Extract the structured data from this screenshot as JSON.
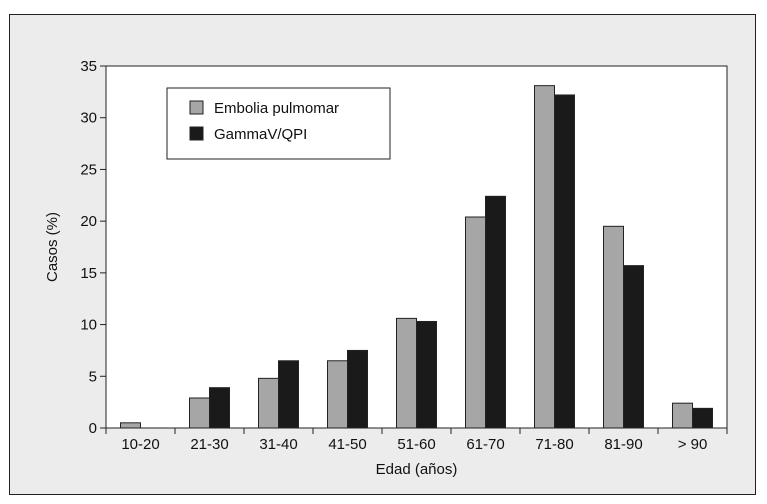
{
  "chart_data": {
    "type": "bar",
    "title": "",
    "xlabel": "Edad (años)",
    "ylabel": "Casos (%)",
    "ylim": [
      0,
      35
    ],
    "yticks": [
      "0",
      "5",
      "10",
      "15",
      "20",
      "25",
      "30",
      "35"
    ],
    "categories": [
      "10-20",
      "21-30",
      "31-40",
      "41-50",
      "51-60",
      "61-70",
      "71-80",
      "81-90",
      "> 90"
    ],
    "series": [
      {
        "name": "Embolia pulmomar",
        "color": "#a6a6a6",
        "values": [
          0.5,
          2.9,
          4.8,
          6.5,
          10.6,
          20.4,
          33.1,
          19.5,
          2.4
        ]
      },
      {
        "name": "GammaV/QPI",
        "color": "#1a1a1a",
        "values": [
          0,
          3.9,
          6.5,
          7.5,
          10.3,
          22.4,
          32.2,
          15.7,
          1.9
        ]
      }
    ],
    "grid": false,
    "legend_position": "top-left"
  }
}
